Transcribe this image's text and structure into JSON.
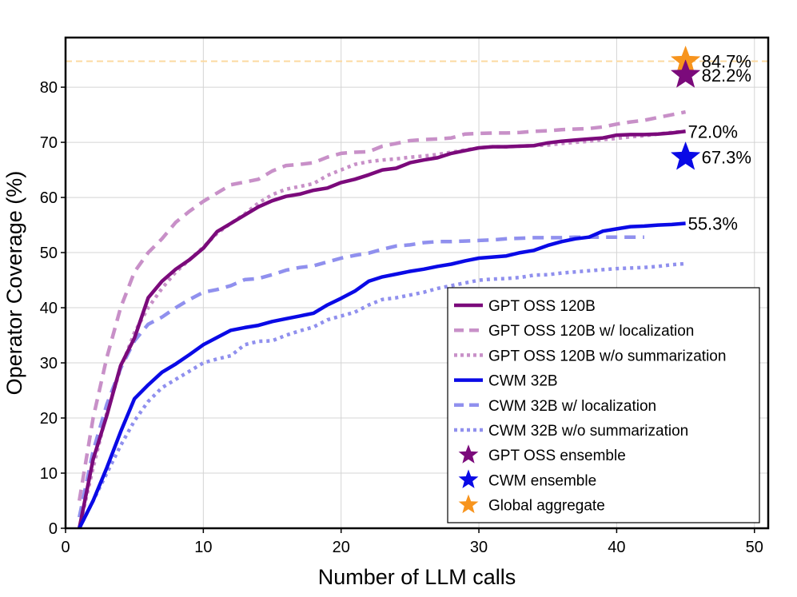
{
  "chart_data": {
    "type": "line",
    "title": "",
    "xlabel": "Number of LLM calls",
    "ylabel": "Operator Coverage (%)",
    "xlim": [
      0,
      51
    ],
    "ylim": [
      0,
      89
    ],
    "xticks": [
      0,
      10,
      20,
      30,
      40,
      50
    ],
    "yticks": [
      0,
      10,
      20,
      30,
      40,
      50,
      60,
      70,
      80
    ],
    "grid": true,
    "legend_position": "lower-right",
    "reference_line": {
      "y": 84.7,
      "color": "#fcd9a0",
      "style": "dashed"
    },
    "series": [
      {
        "name": "GPT OSS 120B",
        "color": "#7b0a7b",
        "style": "solid",
        "x": [
          1,
          2,
          3,
          4,
          5,
          6,
          7,
          8,
          9,
          10,
          11,
          12,
          13,
          14,
          15,
          16,
          17,
          18,
          19,
          20,
          21,
          22,
          23,
          24,
          25,
          26,
          27,
          28,
          29,
          30,
          31,
          32,
          33,
          34,
          35,
          36,
          37,
          38,
          39,
          40,
          41,
          42,
          43,
          44,
          45
        ],
        "y": [
          0,
          12.5,
          20.5,
          29.5,
          34.5,
          41.8,
          44.8,
          47,
          48.7,
          50.8,
          53.8,
          55.3,
          56.8,
          58.3,
          59.4,
          60.2,
          60.6,
          61.3,
          61.7,
          62.7,
          63.3,
          64.1,
          65,
          65.3,
          66.3,
          66.8,
          67.2,
          68,
          68.5,
          69,
          69.2,
          69.2,
          69.3,
          69.4,
          69.9,
          70.2,
          70.4,
          70.6,
          70.8,
          71.3,
          71.4,
          71.4,
          71.5,
          71.7,
          72
        ]
      },
      {
        "name": "GPT OSS 120B w/ localization",
        "color": "#c890c8",
        "style": "dashed",
        "x": [
          1,
          2,
          3,
          4,
          5,
          6,
          7,
          8,
          9,
          10,
          11,
          12,
          13,
          14,
          15,
          16,
          17,
          18,
          19,
          20,
          21,
          22,
          23,
          24,
          25,
          26,
          27,
          28,
          29,
          30,
          31,
          32,
          33,
          34,
          35,
          36,
          37,
          38,
          39,
          40,
          41,
          42,
          43,
          44,
          45
        ],
        "y": [
          5,
          20,
          31,
          40,
          46.5,
          50,
          52.5,
          55.5,
          57.5,
          59.3,
          60.8,
          62.3,
          62.8,
          63.3,
          64.8,
          65.8,
          66,
          66.3,
          67.3,
          68,
          68.2,
          68.3,
          69.3,
          69.8,
          70.3,
          70.5,
          70.6,
          70.8,
          71.5,
          71.6,
          71.7,
          71.7,
          71.8,
          72,
          72.1,
          72.3,
          72.4,
          72.5,
          72.8,
          73.3,
          73.7,
          74,
          74.5,
          75,
          75.5
        ]
      },
      {
        "name": "GPT OSS 120B w/o summarization",
        "color": "#c890c8",
        "style": "dotted",
        "x": [
          1,
          2,
          3,
          4,
          5,
          6,
          7,
          8,
          9,
          10,
          11,
          12,
          13,
          14,
          15,
          16,
          17,
          18,
          19,
          20,
          21,
          22,
          23,
          24,
          25,
          26,
          27,
          28,
          29,
          30,
          31,
          32,
          33,
          34,
          35,
          36,
          37,
          38,
          39,
          40,
          41,
          42,
          43,
          44,
          45
        ],
        "y": [
          0,
          11,
          21,
          29,
          35.5,
          40,
          43.5,
          46.5,
          48.7,
          51,
          53.5,
          55.3,
          57,
          59,
          60.5,
          61.5,
          62,
          62.5,
          64,
          65,
          66,
          66.5,
          66.8,
          67,
          67.3,
          67.5,
          67.8,
          68.2,
          68.6,
          69,
          69.2,
          69.2,
          69.3,
          69.4,
          69.5,
          69.8,
          70,
          70.2,
          70.5,
          70.7,
          71,
          71.2,
          71.5,
          71.8,
          72
        ]
      },
      {
        "name": "CWM 32B",
        "color": "#0a0ae6",
        "style": "solid",
        "x": [
          1,
          2,
          3,
          4,
          5,
          6,
          7,
          8,
          9,
          10,
          11,
          12,
          13,
          14,
          15,
          16,
          17,
          18,
          19,
          20,
          21,
          22,
          23,
          24,
          25,
          26,
          27,
          28,
          29,
          30,
          31,
          32,
          33,
          34,
          35,
          36,
          37,
          38,
          39,
          40,
          41,
          42,
          43,
          44,
          45
        ],
        "y": [
          0,
          5,
          11,
          17.5,
          23.5,
          26,
          28.3,
          29.8,
          31.5,
          33.3,
          34.6,
          35.9,
          36.4,
          36.8,
          37.5,
          38,
          38.5,
          39,
          40.5,
          41.7,
          43,
          44.8,
          45.6,
          46.1,
          46.6,
          47,
          47.5,
          47.9,
          48.5,
          49,
          49.2,
          49.4,
          50,
          50.4,
          51.3,
          52,
          52.5,
          52.8,
          53.9,
          54.3,
          54.7,
          54.8,
          55,
          55.1,
          55.3
        ]
      },
      {
        "name": "CWM 32B w/ localization",
        "color": "#9090ee",
        "style": "dashed",
        "x": [
          1,
          2,
          3,
          4,
          5,
          6,
          7,
          8,
          9,
          10,
          11,
          12,
          13,
          14,
          15,
          16,
          17,
          18,
          19,
          20,
          21,
          22,
          23,
          24,
          25,
          26,
          27,
          28,
          29,
          30,
          31,
          32,
          33,
          34,
          35,
          36,
          37,
          38,
          39,
          40,
          41,
          42
        ],
        "y": [
          2,
          14,
          22.5,
          29,
          34,
          37,
          38.3,
          40,
          41.5,
          42.8,
          43.3,
          44,
          45.1,
          45.3,
          46,
          46.8,
          47.3,
          47.6,
          48.3,
          49,
          49.5,
          49.9,
          50.6,
          51.2,
          51.4,
          51.8,
          52,
          52,
          52.1,
          52.2,
          52.3,
          52.5,
          52.6,
          52.7,
          52.7,
          52.7,
          52.8,
          52.8,
          52.8,
          52.8,
          52.8,
          52.8
        ]
      },
      {
        "name": "CWM 32B w/o summarization",
        "color": "#9090ee",
        "style": "dotted",
        "x": [
          1,
          2,
          3,
          4,
          5,
          6,
          7,
          8,
          9,
          10,
          11,
          12,
          13,
          14,
          15,
          16,
          17,
          18,
          19,
          20,
          21,
          22,
          23,
          24,
          25,
          26,
          27,
          28,
          29,
          30,
          31,
          32,
          33,
          34,
          35,
          36,
          37,
          38,
          39,
          40,
          41,
          42,
          43,
          44,
          45
        ],
        "y": [
          0,
          5,
          10,
          15,
          19.5,
          23,
          25.5,
          27,
          28.5,
          30,
          30.7,
          31.3,
          33.3,
          33.9,
          34,
          35,
          35.8,
          36.5,
          37.8,
          38.5,
          39.2,
          40.5,
          41.5,
          41.8,
          42.3,
          42.8,
          43.5,
          44,
          44.5,
          45,
          45.2,
          45.3,
          45.5,
          45.9,
          46,
          46.3,
          46.5,
          46.7,
          46.9,
          47.1,
          47.2,
          47.3,
          47.5,
          47.8,
          48
        ]
      }
    ],
    "end_labels": [
      {
        "series": "GPT OSS 120B",
        "text": "72.0%",
        "x": 45,
        "y": 72.0
      },
      {
        "series": "CWM 32B",
        "text": "55.3%",
        "x": 45,
        "y": 55.3
      }
    ],
    "markers": [
      {
        "name": "GPT OSS ensemble",
        "color": "#7b0a7b",
        "x": 45,
        "y": 82.2,
        "label": "82.2%"
      },
      {
        "name": "CWM ensemble",
        "color": "#0a0ae6",
        "x": 45,
        "y": 67.3,
        "label": "67.3%"
      },
      {
        "name": "Global aggregate",
        "color": "#f7941d",
        "x": 45,
        "y": 84.7,
        "label": "84.7%"
      }
    ],
    "legend": [
      {
        "label": "GPT OSS 120B",
        "kind": "line",
        "color": "#7b0a7b",
        "style": "solid"
      },
      {
        "label": "GPT OSS 120B w/ localization",
        "kind": "line",
        "color": "#c890c8",
        "style": "dashed"
      },
      {
        "label": "GPT OSS 120B w/o summarization",
        "kind": "line",
        "color": "#c890c8",
        "style": "dotted"
      },
      {
        "label": "CWM 32B",
        "kind": "line",
        "color": "#0a0ae6",
        "style": "solid"
      },
      {
        "label": "CWM 32B w/ localization",
        "kind": "line",
        "color": "#9090ee",
        "style": "dashed"
      },
      {
        "label": "CWM 32B w/o summarization",
        "kind": "line",
        "color": "#9090ee",
        "style": "dotted"
      },
      {
        "label": "GPT OSS ensemble",
        "kind": "star",
        "color": "#7b0a7b"
      },
      {
        "label": "CWM ensemble",
        "kind": "star",
        "color": "#0a0ae6"
      },
      {
        "label": "Global aggregate",
        "kind": "star",
        "color": "#f7941d"
      }
    ]
  }
}
